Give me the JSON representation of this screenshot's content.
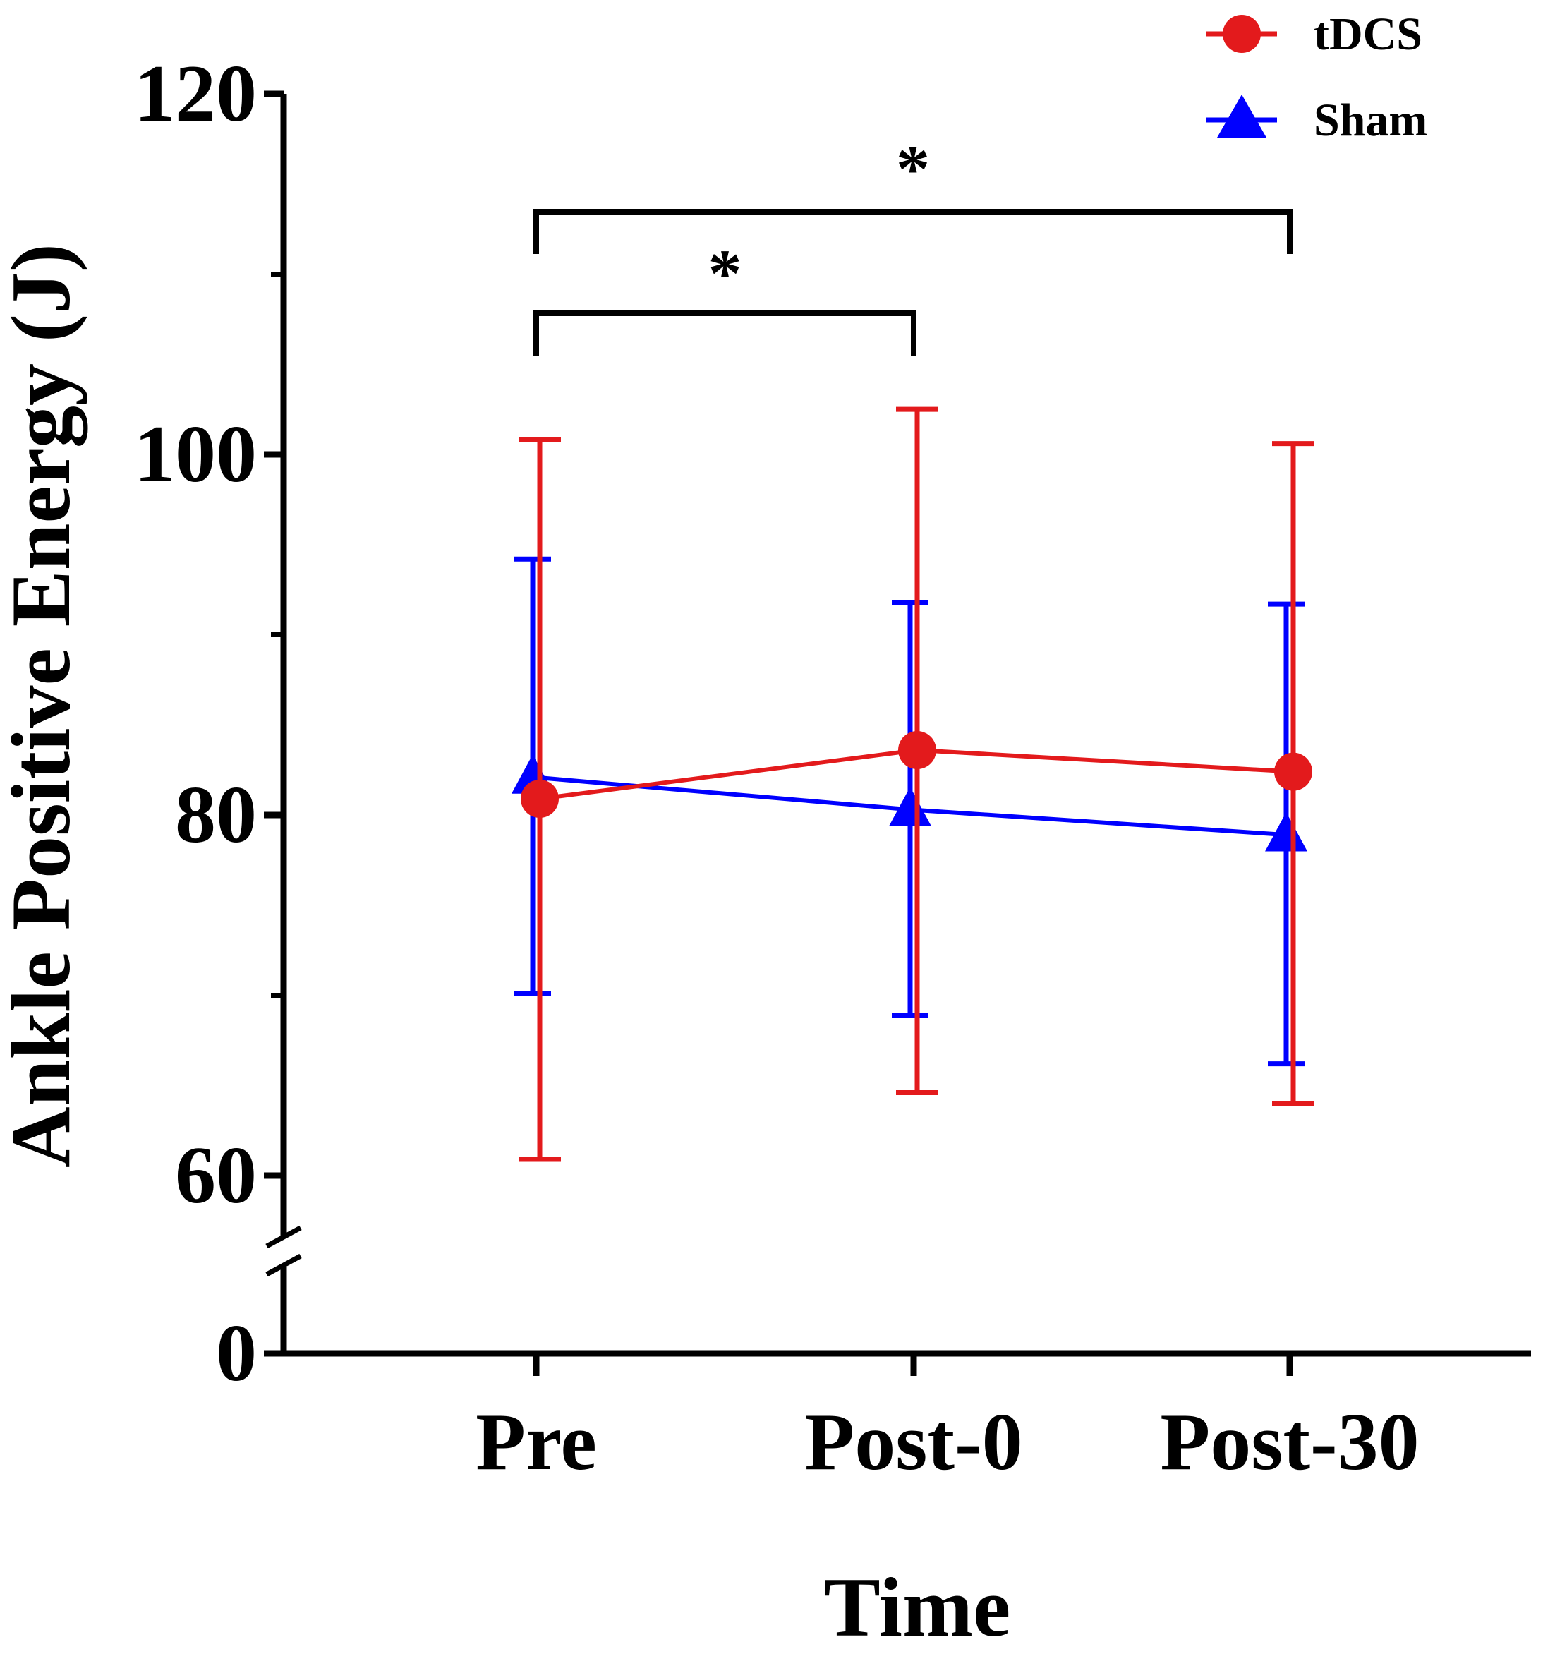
{
  "chart_data": {
    "type": "line",
    "title": "",
    "xlabel": "Time",
    "ylabel": "Ankle Positive Energy (J)",
    "categories": [
      "Pre",
      "Post-0",
      "Post-30"
    ],
    "y_ticks": [
      0,
      60,
      80,
      100,
      120
    ],
    "y_tick_labels": [
      "0",
      "60",
      "80",
      "100",
      "120"
    ],
    "ylim": [
      0,
      120
    ],
    "y_axis_break": {
      "between": [
        0,
        60
      ]
    },
    "series": [
      {
        "name": "tDCS",
        "color": "#e31a1c",
        "marker": "circle",
        "values": [
          80.9,
          83.6,
          82.4
        ],
        "error_upper": [
          100.8,
          102.5,
          100.6
        ],
        "error_lower": [
          60.9,
          64.6,
          64.0
        ]
      },
      {
        "name": "Sham",
        "color": "#0000ff",
        "marker": "triangle",
        "values": [
          82.1,
          80.3,
          78.9
        ],
        "error_upper": [
          94.2,
          91.8,
          91.7
        ],
        "error_lower": [
          70.1,
          68.9,
          66.2
        ]
      }
    ],
    "significance": [
      {
        "from": "Pre",
        "to": "Post-0",
        "label": "*"
      },
      {
        "from": "Pre",
        "to": "Post-30",
        "label": "*"
      }
    ],
    "legend": {
      "position": "top-right",
      "entries": [
        "tDCS",
        "Sham"
      ]
    }
  }
}
